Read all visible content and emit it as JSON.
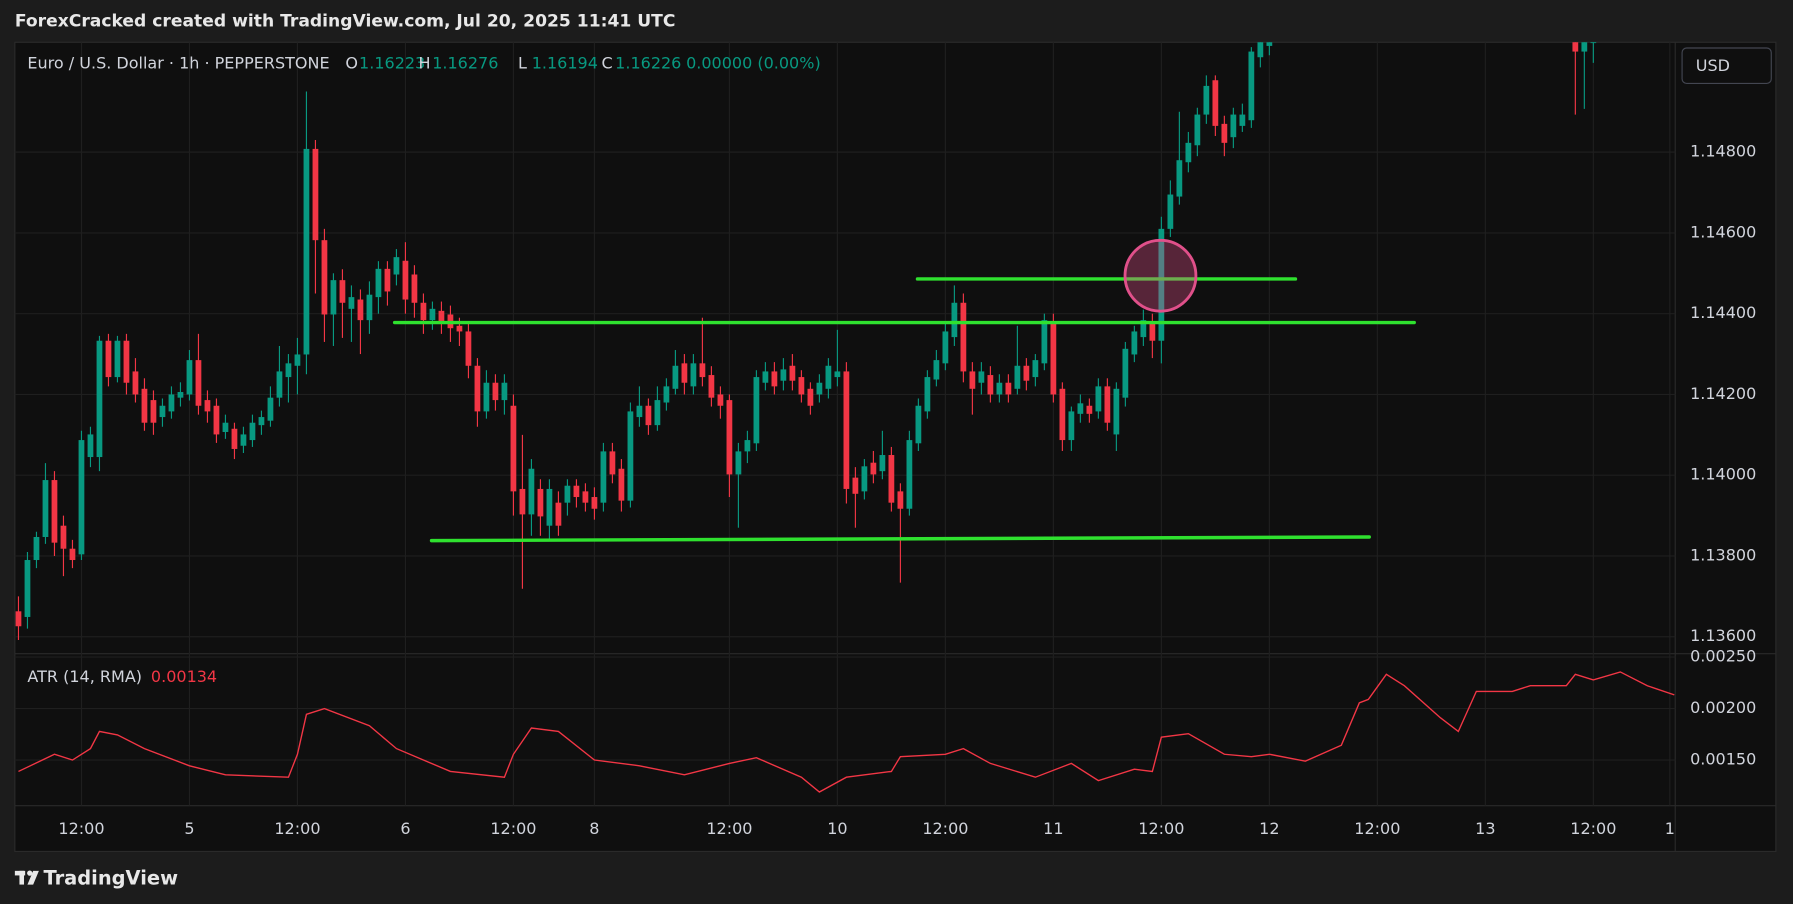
{
  "chart_data": {
    "type": "candlestick",
    "title": "ForexCracked created with TradingView.com, Jul 20, 2025 11:41 UTC",
    "symbol": "Euro / U.S. Dollar · 1h · PEPPERSTONE",
    "ohlc_legend": [
      {
        "label": "O",
        "value": 1.16223
      },
      {
        "label": "H",
        "value": 1.16276
      },
      {
        "label": "L",
        "value": 1.16194
      },
      {
        "label": "C",
        "value": 1.16226
      }
    ],
    "change": "0.00000 (0.00%)",
    "currency": "USD",
    "brand": "TradingView",
    "up_color": "#089981",
    "down_color": "#f23645",
    "grid": true,
    "xlim": [
      -0.4,
      184.1
    ],
    "xticks": [
      {
        "value": 7,
        "label": "12:00"
      },
      {
        "value": 19,
        "label": "5"
      },
      {
        "value": 31,
        "label": "12:00"
      },
      {
        "value": 43,
        "label": "6"
      },
      {
        "value": 55,
        "label": "12:00"
      },
      {
        "value": 64,
        "label": "8"
      },
      {
        "value": 79,
        "label": "12:00"
      },
      {
        "value": 91,
        "label": "10"
      },
      {
        "value": 103,
        "label": "12:00"
      },
      {
        "value": 115,
        "label": "11"
      },
      {
        "value": 127,
        "label": "12:00"
      },
      {
        "value": 139,
        "label": "12"
      },
      {
        "value": 151,
        "label": "12:00"
      },
      {
        "value": 163,
        "label": "13"
      },
      {
        "value": 175,
        "label": "12:00"
      },
      {
        "value": 183.5,
        "label": "1"
      }
    ],
    "ylim": [
      1.13558,
      1.15072
    ],
    "yticks": [
      {
        "value": 1.136,
        "label": "1.13600"
      },
      {
        "value": 1.138,
        "label": "1.13800"
      },
      {
        "value": 1.14,
        "label": "1.14000"
      },
      {
        "value": 1.142,
        "label": "1.14200"
      },
      {
        "value": 1.144,
        "label": "1.14400"
      },
      {
        "value": 1.146,
        "label": "1.14600"
      },
      {
        "value": 1.148,
        "label": "1.14800"
      }
    ],
    "ohlc": [
      [
        1.13663,
        1.137,
        1.13592,
        1.13626
      ],
      [
        1.13649,
        1.1381,
        1.1362,
        1.1379
      ],
      [
        1.1379,
        1.1386,
        1.1377,
        1.13847
      ],
      [
        1.13847,
        1.1403,
        1.1383,
        1.13988
      ],
      [
        1.13988,
        1.1401,
        1.138,
        1.13833
      ],
      [
        1.13875,
        1.139,
        1.1375,
        1.13818
      ],
      [
        1.13818,
        1.1384,
        1.1377,
        1.1379
      ],
      [
        1.13804,
        1.1411,
        1.1379,
        1.14087
      ],
      [
        1.14045,
        1.1412,
        1.1402,
        1.14101
      ],
      [
        1.14045,
        1.14345,
        1.1401,
        1.14333
      ],
      [
        1.14333,
        1.1435,
        1.1422,
        1.14243
      ],
      [
        1.14243,
        1.14345,
        1.1423,
        1.14333
      ],
      [
        1.14333,
        1.1435,
        1.142,
        1.14229
      ],
      [
        1.14257,
        1.1429,
        1.1418,
        1.142
      ],
      [
        1.14214,
        1.1424,
        1.1411,
        1.1413
      ],
      [
        1.14186,
        1.1421,
        1.141,
        1.1413
      ],
      [
        1.14144,
        1.1419,
        1.1412,
        1.14172
      ],
      [
        1.14158,
        1.1422,
        1.1414,
        1.142
      ],
      [
        1.14192,
        1.1423,
        1.1417,
        1.14206
      ],
      [
        1.142,
        1.1431,
        1.14185,
        1.14285
      ],
      [
        1.14285,
        1.1435,
        1.1415,
        1.14172
      ],
      [
        1.14186,
        1.1421,
        1.1413,
        1.14158
      ],
      [
        1.14172,
        1.1419,
        1.1408,
        1.14101
      ],
      [
        1.14107,
        1.1415,
        1.1409,
        1.1413
      ],
      [
        1.14115,
        1.1413,
        1.1404,
        1.14065
      ],
      [
        1.14073,
        1.1412,
        1.14055,
        1.14101
      ],
      [
        1.14087,
        1.1415,
        1.1407,
        1.1413
      ],
      [
        1.14124,
        1.1416,
        1.141,
        1.14144
      ],
      [
        1.14135,
        1.1422,
        1.1412,
        1.14192
      ],
      [
        1.14192,
        1.1432,
        1.1417,
        1.14257
      ],
      [
        1.14243,
        1.143,
        1.1418,
        1.14277
      ],
      [
        1.14271,
        1.1434,
        1.142,
        1.14299
      ],
      [
        1.14299,
        1.1495,
        1.1425,
        1.14808
      ],
      [
        1.14808,
        1.1483,
        1.1445,
        1.14582
      ],
      [
        1.14582,
        1.1461,
        1.1433,
        1.14398
      ],
      [
        1.14398,
        1.145,
        1.1432,
        1.14483
      ],
      [
        1.14483,
        1.1451,
        1.1434,
        1.14427
      ],
      [
        1.14412,
        1.1447,
        1.1433,
        1.14441
      ],
      [
        1.14435,
        1.1446,
        1.143,
        1.14384
      ],
      [
        1.14384,
        1.1448,
        1.1435,
        1.14447
      ],
      [
        1.14441,
        1.1453,
        1.144,
        1.14511
      ],
      [
        1.14511,
        1.1453,
        1.1442,
        1.14455
      ],
      [
        1.14497,
        1.1456,
        1.1447,
        1.1454
      ],
      [
        1.14531,
        1.14577,
        1.144,
        1.14435
      ],
      [
        1.14497,
        1.1452,
        1.1439,
        1.14427
      ],
      [
        1.14427,
        1.1445,
        1.1435,
        1.14384
      ],
      [
        1.14384,
        1.1443,
        1.1436,
        1.14412
      ],
      [
        1.14407,
        1.1443,
        1.1435,
        1.14378
      ],
      [
        1.14398,
        1.1442,
        1.1433,
        1.14364
      ],
      [
        1.1437,
        1.1439,
        1.1432,
        1.14356
      ],
      [
        1.14356,
        1.1438,
        1.1424,
        1.14271
      ],
      [
        1.14271,
        1.1429,
        1.1412,
        1.14158
      ],
      [
        1.14158,
        1.1426,
        1.1414,
        1.14229
      ],
      [
        1.14229,
        1.1425,
        1.1416,
        1.14186
      ],
      [
        1.14186,
        1.1425,
        1.1415,
        1.14229
      ],
      [
        1.14172,
        1.142,
        1.139,
        1.1396
      ],
      [
        1.13966,
        1.141,
        1.13719,
        1.13903
      ],
      [
        1.13903,
        1.1404,
        1.1385,
        1.14016
      ],
      [
        1.13966,
        1.1399,
        1.1385,
        1.13898
      ],
      [
        1.13875,
        1.1399,
        1.1384,
        1.13966
      ],
      [
        1.13932,
        1.1396,
        1.1385,
        1.13875
      ],
      [
        1.13932,
        1.1399,
        1.139,
        1.13974
      ],
      [
        1.13974,
        1.1399,
        1.1392,
        1.13946
      ],
      [
        1.1396,
        1.1398,
        1.1391,
        1.13932
      ],
      [
        1.13946,
        1.1397,
        1.1389,
        1.13917
      ],
      [
        1.13932,
        1.1408,
        1.1391,
        1.14059
      ],
      [
        1.14059,
        1.1408,
        1.1398,
        1.14002
      ],
      [
        1.14016,
        1.1404,
        1.1391,
        1.13937
      ],
      [
        1.13937,
        1.1418,
        1.1392,
        1.14158
      ],
      [
        1.14144,
        1.1422,
        1.1412,
        1.14172
      ],
      [
        1.14172,
        1.1419,
        1.141,
        1.14124
      ],
      [
        1.14124,
        1.1422,
        1.1411,
        1.14186
      ],
      [
        1.1418,
        1.1424,
        1.1416,
        1.1422
      ],
      [
        1.14214,
        1.1431,
        1.142,
        1.14271
      ],
      [
        1.14277,
        1.143,
        1.142,
        1.14229
      ],
      [
        1.1422,
        1.143,
        1.142,
        1.14277
      ],
      [
        1.14277,
        1.1439,
        1.1422,
        1.14243
      ],
      [
        1.14248,
        1.1427,
        1.1417,
        1.14192
      ],
      [
        1.142,
        1.1422,
        1.1414,
        1.14172
      ],
      [
        1.14186,
        1.142,
        1.13946,
        1.14002
      ],
      [
        1.14002,
        1.1408,
        1.1387,
        1.14059
      ],
      [
        1.14059,
        1.1411,
        1.1403,
        1.14087
      ],
      [
        1.14079,
        1.1426,
        1.1406,
        1.14243
      ],
      [
        1.14229,
        1.1428,
        1.1421,
        1.14257
      ],
      [
        1.14257,
        1.1428,
        1.142,
        1.1422
      ],
      [
        1.14234,
        1.1429,
        1.1421,
        1.14262
      ],
      [
        1.14271,
        1.143,
        1.1421,
        1.14234
      ],
      [
        1.14243,
        1.1426,
        1.1418,
        1.142
      ],
      [
        1.14214,
        1.1423,
        1.1415,
        1.14172
      ],
      [
        1.142,
        1.1425,
        1.1418,
        1.14229
      ],
      [
        1.14214,
        1.1429,
        1.1419,
        1.14271
      ],
      [
        1.14243,
        1.1436,
        1.1422,
        1.14257
      ],
      [
        1.14257,
        1.1428,
        1.1393,
        1.13966
      ],
      [
        1.13994,
        1.1402,
        1.1387,
        1.13954
      ],
      [
        1.1396,
        1.1404,
        1.1394,
        1.14022
      ],
      [
        1.14031,
        1.1406,
        1.1398,
        1.14002
      ],
      [
        1.1401,
        1.1411,
        1.1399,
        1.1405
      ],
      [
        1.1405,
        1.1407,
        1.1391,
        1.13932
      ],
      [
        1.1396,
        1.1398,
        1.13734,
        1.13917
      ],
      [
        1.13917,
        1.1411,
        1.139,
        1.14087
      ],
      [
        1.14079,
        1.1419,
        1.1406,
        1.14172
      ],
      [
        1.14158,
        1.1426,
        1.1414,
        1.14243
      ],
      [
        1.14237,
        1.1431,
        1.1422,
        1.14285
      ],
      [
        1.14277,
        1.1438,
        1.1426,
        1.14356
      ],
      [
        1.14342,
        1.1447,
        1.1432,
        1.14427
      ],
      [
        1.14427,
        1.1445,
        1.1423,
        1.14257
      ],
      [
        1.14257,
        1.1428,
        1.1415,
        1.14214
      ],
      [
        1.14229,
        1.1428,
        1.142,
        1.14257
      ],
      [
        1.14248,
        1.1427,
        1.1418,
        1.142
      ],
      [
        1.142,
        1.1425,
        1.1418,
        1.14229
      ],
      [
        1.14229,
        1.1425,
        1.1418,
        1.142
      ],
      [
        1.14214,
        1.1437,
        1.142,
        1.14271
      ],
      [
        1.14271,
        1.1429,
        1.1421,
        1.14234
      ],
      [
        1.14243,
        1.143,
        1.1422,
        1.14285
      ],
      [
        1.14277,
        1.144,
        1.1426,
        1.14384
      ],
      [
        1.14378,
        1.144,
        1.1418,
        1.142
      ],
      [
        1.14214,
        1.1423,
        1.1406,
        1.14087
      ],
      [
        1.14087,
        1.1417,
        1.1406,
        1.14158
      ],
      [
        1.14152,
        1.142,
        1.1413,
        1.14178
      ],
      [
        1.14172,
        1.1419,
        1.1413,
        1.14152
      ],
      [
        1.14158,
        1.1424,
        1.1414,
        1.1422
      ],
      [
        1.1422,
        1.1424,
        1.1411,
        1.1413
      ],
      [
        1.14101,
        1.1423,
        1.1406,
        1.14214
      ],
      [
        1.14192,
        1.1433,
        1.1417,
        1.14313
      ],
      [
        1.14299,
        1.1437,
        1.1428,
        1.14356
      ],
      [
        1.14342,
        1.1441,
        1.1432,
        1.14384
      ],
      [
        1.14375,
        1.144,
        1.1429,
        1.14333
      ],
      [
        1.14333,
        1.1464,
        1.14277,
        1.1461
      ],
      [
        1.1461,
        1.1473,
        1.1459,
        1.14695
      ],
      [
        1.1469,
        1.149,
        1.1467,
        1.1478
      ],
      [
        1.14775,
        1.1485,
        1.1475,
        1.14823
      ],
      [
        1.14817,
        1.1491,
        1.1479,
        1.14893
      ],
      [
        1.14893,
        1.1499,
        1.1487,
        1.14964
      ],
      [
        1.14978,
        1.1499,
        1.1484,
        1.14865
      ],
      [
        1.1487,
        1.1489,
        1.1479,
        1.14823
      ],
      [
        1.14837,
        1.1491,
        1.1481,
        1.14893
      ],
      [
        1.14865,
        1.1492,
        1.1485,
        1.14893
      ],
      [
        1.14879,
        1.1506,
        1.1486,
        1.15049
      ],
      [
        1.15035,
        1.1511,
        1.1501,
        1.1508
      ],
      [
        1.15063,
        1.1512,
        1.1504,
        1.151
      ],
      null,
      null,
      null,
      null,
      null,
      null,
      null,
      null,
      null,
      null,
      null,
      null,
      null,
      null,
      null,
      null,
      null,
      null,
      null,
      null,
      null,
      null,
      null,
      null,
      null,
      null,
      null,
      null,
      null,
      null,
      null,
      null,
      null,
      [
        1.151,
        1.1512,
        1.14893,
        1.15049
      ],
      [
        1.15049,
        1.1513,
        1.14907,
        1.151
      ],
      [
        1.1507,
        1.1513,
        1.15021,
        1.1511
      ]
    ],
    "annotations": [
      {
        "color": "#2fe12f",
        "x": [
          99.9,
          141.9
        ],
        "y": [
          1.14486,
          1.14486
        ]
      },
      {
        "color": "#2fe12f",
        "x": [
          41.8,
          155.1
        ],
        "y": [
          1.14378,
          1.14378
        ]
      },
      {
        "color": "#2fe12f",
        "x": [
          45.9,
          150.1
        ],
        "y": [
          1.13838,
          1.13847
        ]
      }
    ],
    "circle": {
      "color": "#e0508a",
      "x": 126.9,
      "y": 1.14494
    },
    "atr": {
      "title": "ATR (14, RMA)",
      "last": 0.00134,
      "color": "#f23645",
      "ylim": [
        0.001056,
        0.002533
      ],
      "yticks": [
        {
          "value": 0.0015,
          "label": "0.00150"
        },
        {
          "value": 0.002,
          "label": "0.00200"
        },
        {
          "value": 0.0025,
          "label": "0.00250"
        }
      ],
      "x": [
        0,
        4,
        6,
        8,
        9,
        11,
        14,
        19,
        23,
        30,
        31,
        32,
        34,
        39,
        42,
        48,
        54,
        55,
        57,
        60,
        64,
        69,
        74,
        79,
        82,
        87,
        89,
        92,
        97,
        98,
        103,
        105,
        108,
        113,
        117,
        120,
        124,
        126,
        127,
        130,
        134,
        137,
        139,
        143,
        147,
        149,
        150,
        152,
        154,
        158,
        160,
        162,
        166,
        168,
        172,
        173,
        175,
        178,
        181,
        184
      ],
      "values": [
        0.001389,
        0.001556,
        0.0015,
        0.001611,
        0.001778,
        0.001744,
        0.001611,
        0.001444,
        0.001356,
        0.001333,
        0.001556,
        0.001944,
        0.002,
        0.001833,
        0.001611,
        0.001389,
        0.001333,
        0.001556,
        0.001811,
        0.001778,
        0.0015,
        0.001444,
        0.001356,
        0.001467,
        0.001522,
        0.001333,
        0.001189,
        0.001333,
        0.001389,
        0.001533,
        0.001556,
        0.001611,
        0.001467,
        0.001333,
        0.001467,
        0.0013,
        0.001411,
        0.001389,
        0.001722,
        0.001756,
        0.001556,
        0.001533,
        0.001556,
        0.001489,
        0.001644,
        0.002056,
        0.002089,
        0.002333,
        0.002222,
        0.001911,
        0.001778,
        0.002167,
        0.002167,
        0.002222,
        0.002222,
        0.002333,
        0.002278,
        0.002356,
        0.002222,
        0.002133
      ]
    }
  }
}
